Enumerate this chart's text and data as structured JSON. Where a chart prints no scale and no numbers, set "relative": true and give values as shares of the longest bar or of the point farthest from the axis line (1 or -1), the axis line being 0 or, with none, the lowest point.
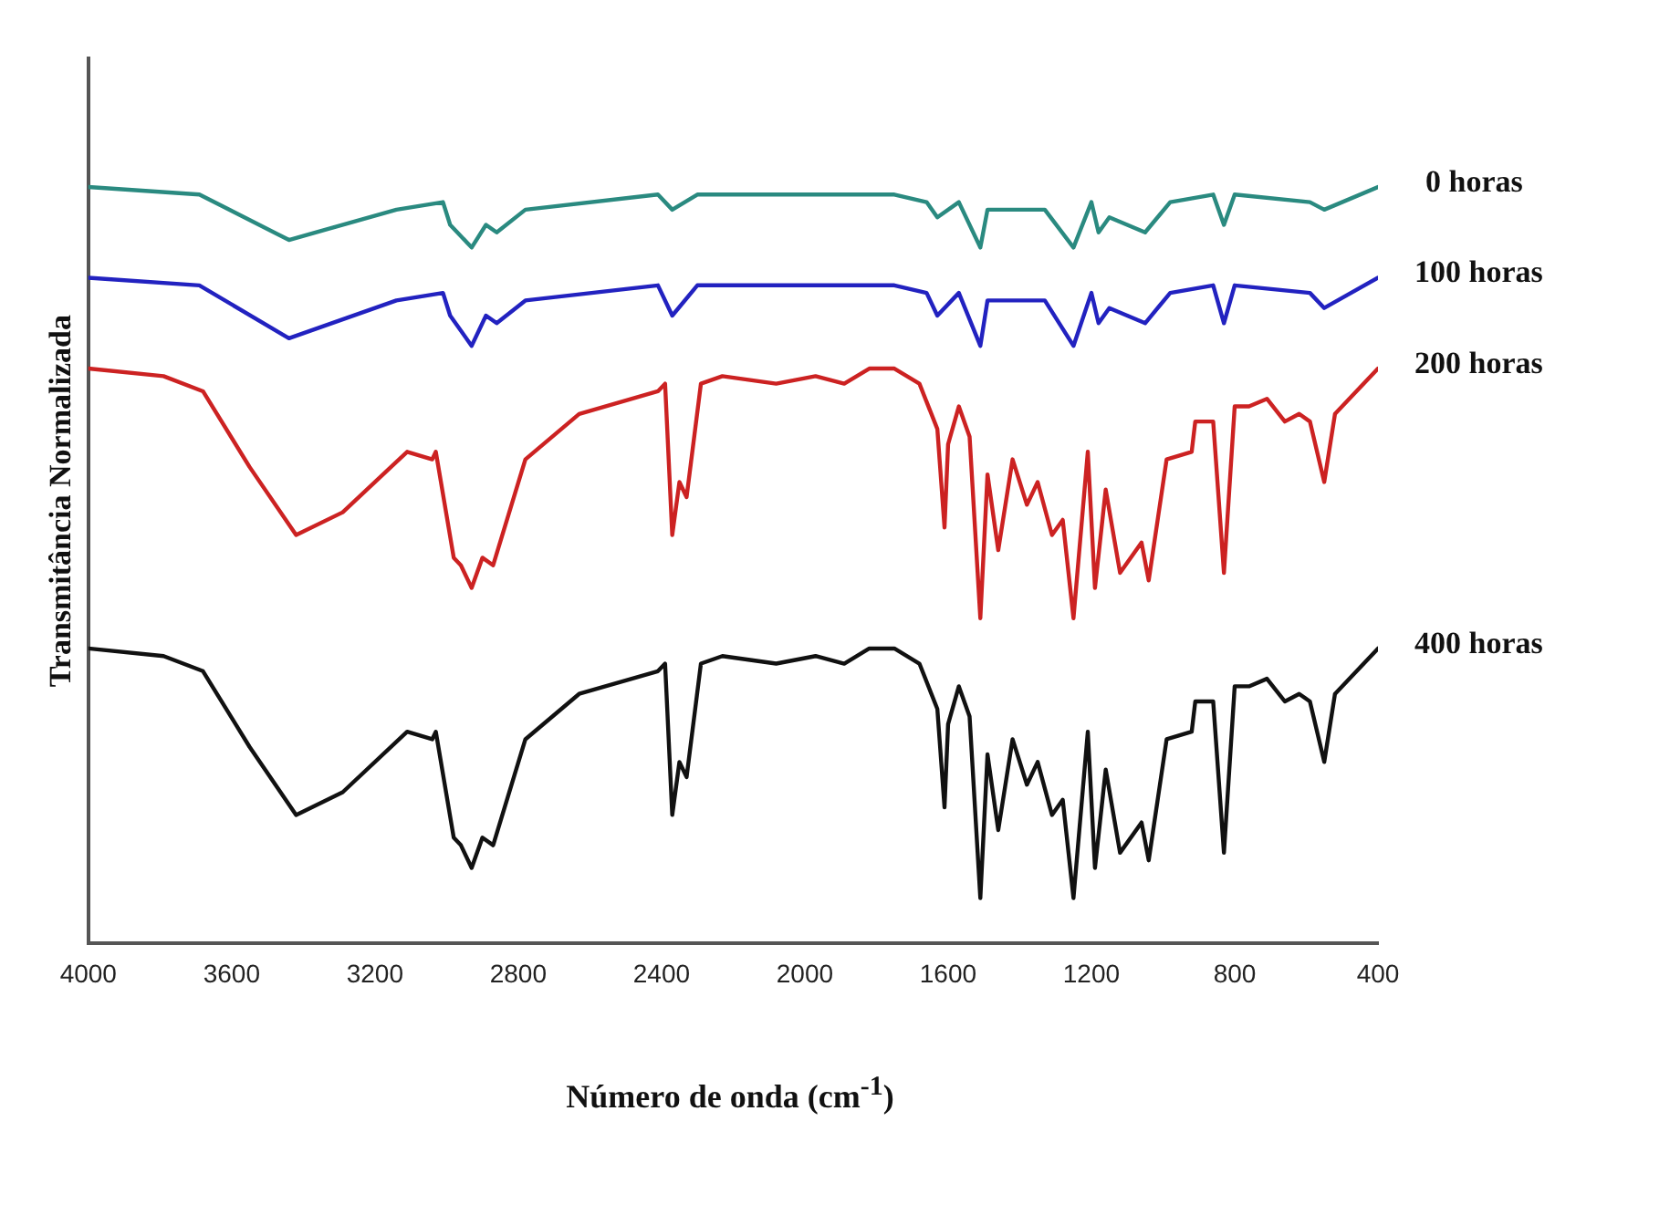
{
  "chart_data": {
    "type": "line",
    "xlabel": "Número de onda  (cm$^{-1}$)",
    "ylabel": "Transmitância Normalizada",
    "relative": true,
    "xlim": [
      4000,
      400
    ],
    "xticks": [
      4000,
      3600,
      3200,
      2800,
      2400,
      2000,
      1600,
      1200,
      800,
      400
    ],
    "grid": false,
    "legend": false,
    "marker": "none",
    "line_style": "solid",
    "series": [
      {
        "name": "0 horas",
        "color": "#2a8a80",
        "x": [
          4000,
          3690,
          3440,
          3140,
          3010,
          2990,
          2930,
          2890,
          2860,
          2780,
          2410,
          2370,
          2300,
          1750,
          1660,
          1630,
          1570,
          1510,
          1490,
          1420,
          1330,
          1250,
          1200,
          1180,
          1150,
          1100,
          1050,
          980,
          860,
          830,
          800,
          590,
          550,
          400
        ],
        "values": [
          1.0,
          0.99,
          0.93,
          0.97,
          0.98,
          0.95,
          0.92,
          0.95,
          0.94,
          0.97,
          0.99,
          0.97,
          0.99,
          0.99,
          0.98,
          0.96,
          0.98,
          0.92,
          0.97,
          0.97,
          0.97,
          0.92,
          0.98,
          0.94,
          0.96,
          0.95,
          0.94,
          0.98,
          0.99,
          0.95,
          0.99,
          0.98,
          0.97,
          1.0
        ]
      },
      {
        "name": "100 horas",
        "color": "#2222c0",
        "x": [
          4000,
          3690,
          3440,
          3140,
          3010,
          2990,
          2930,
          2890,
          2860,
          2780,
          2410,
          2370,
          2300,
          1750,
          1660,
          1630,
          1570,
          1510,
          1490,
          1420,
          1330,
          1250,
          1200,
          1180,
          1150,
          1100,
          1050,
          980,
          860,
          830,
          800,
          590,
          550,
          400
        ],
        "values": [
          0.88,
          0.87,
          0.8,
          0.85,
          0.86,
          0.83,
          0.79,
          0.83,
          0.82,
          0.85,
          0.87,
          0.83,
          0.87,
          0.87,
          0.86,
          0.83,
          0.86,
          0.79,
          0.85,
          0.85,
          0.85,
          0.79,
          0.86,
          0.82,
          0.84,
          0.83,
          0.82,
          0.86,
          0.87,
          0.82,
          0.87,
          0.86,
          0.84,
          0.88
        ]
      },
      {
        "name": "200 horas",
        "color": "#cc2222",
        "x": [
          4000,
          3790,
          3680,
          3550,
          3420,
          3290,
          3110,
          3040,
          3030,
          2980,
          2960,
          2930,
          2900,
          2870,
          2780,
          2630,
          2410,
          2390,
          2370,
          2350,
          2330,
          2290,
          2230,
          2080,
          1970,
          1890,
          1820,
          1750,
          1680,
          1630,
          1610,
          1600,
          1570,
          1540,
          1510,
          1490,
          1460,
          1420,
          1380,
          1350,
          1310,
          1280,
          1250,
          1210,
          1190,
          1160,
          1120,
          1060,
          1040,
          990,
          920,
          910,
          860,
          830,
          800,
          760,
          710,
          660,
          620,
          590,
          550,
          520,
          400
        ],
        "values": [
          0.76,
          0.75,
          0.73,
          0.63,
          0.54,
          0.57,
          0.65,
          0.64,
          0.65,
          0.51,
          0.5,
          0.47,
          0.51,
          0.5,
          0.64,
          0.7,
          0.73,
          0.74,
          0.54,
          0.61,
          0.59,
          0.74,
          0.75,
          0.74,
          0.75,
          0.74,
          0.76,
          0.76,
          0.74,
          0.68,
          0.55,
          0.66,
          0.71,
          0.67,
          0.43,
          0.62,
          0.52,
          0.64,
          0.58,
          0.61,
          0.54,
          0.56,
          0.43,
          0.65,
          0.47,
          0.6,
          0.49,
          0.53,
          0.48,
          0.64,
          0.65,
          0.69,
          0.69,
          0.49,
          0.71,
          0.71,
          0.72,
          0.69,
          0.7,
          0.69,
          0.61,
          0.7,
          0.76
        ]
      },
      {
        "name": "400 horas",
        "color": "#111111",
        "x": [
          4000,
          3790,
          3680,
          3550,
          3420,
          3290,
          3110,
          3040,
          3030,
          2980,
          2960,
          2930,
          2900,
          2870,
          2780,
          2630,
          2410,
          2390,
          2370,
          2350,
          2330,
          2290,
          2230,
          2080,
          1970,
          1890,
          1820,
          1750,
          1680,
          1630,
          1610,
          1600,
          1570,
          1540,
          1510,
          1490,
          1460,
          1420,
          1380,
          1350,
          1310,
          1280,
          1250,
          1210,
          1190,
          1160,
          1120,
          1060,
          1040,
          990,
          920,
          910,
          860,
          830,
          800,
          760,
          710,
          660,
          620,
          590,
          550,
          520,
          400
        ],
        "values": [
          0.39,
          0.38,
          0.36,
          0.26,
          0.17,
          0.2,
          0.28,
          0.27,
          0.28,
          0.14,
          0.13,
          0.1,
          0.14,
          0.13,
          0.27,
          0.33,
          0.36,
          0.37,
          0.17,
          0.24,
          0.22,
          0.37,
          0.38,
          0.37,
          0.38,
          0.37,
          0.39,
          0.39,
          0.37,
          0.31,
          0.18,
          0.29,
          0.34,
          0.3,
          0.06,
          0.25,
          0.15,
          0.27,
          0.21,
          0.24,
          0.17,
          0.19,
          0.06,
          0.28,
          0.1,
          0.23,
          0.12,
          0.16,
          0.11,
          0.27,
          0.28,
          0.32,
          0.32,
          0.12,
          0.34,
          0.34,
          0.35,
          0.32,
          0.33,
          0.32,
          0.24,
          0.33,
          0.39
        ]
      }
    ]
  }
}
